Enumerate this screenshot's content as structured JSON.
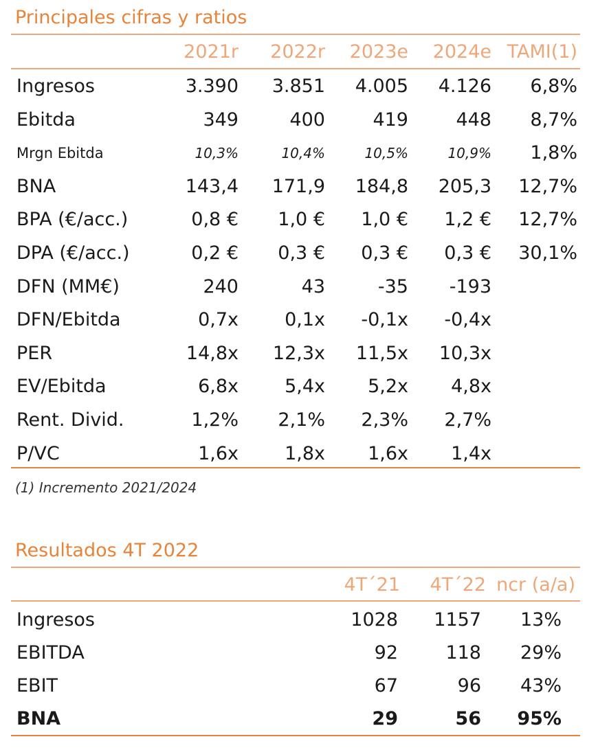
{
  "table1": {
    "title": "Principales cifras y ratios",
    "headers": [
      "2021r",
      "2022r",
      "2023e",
      "2024e",
      "TAMI(1)"
    ],
    "rows": [
      {
        "label": "Ingresos",
        "values": [
          "3.390",
          "3.851",
          "4.005",
          "4.126",
          "6,8%"
        ]
      },
      {
        "label": "Ebitda",
        "values": [
          "349",
          "400",
          "419",
          "448",
          "8,7%"
        ]
      },
      {
        "label": "Mrgn Ebitda",
        "values": [
          "10,3%",
          "10,4%",
          "10,5%",
          "10,9%",
          "1,8%"
        ]
      },
      {
        "label": "BNA",
        "values": [
          "143,4",
          "171,9",
          "184,8",
          "205,3",
          "12,7%"
        ]
      },
      {
        "label": "BPA (€/acc.)",
        "values": [
          "0,8 €",
          "1,0 €",
          "1,0 €",
          "1,2 €",
          "12,7%"
        ]
      },
      {
        "label": "DPA (€/acc.)",
        "values": [
          "0,2 €",
          "0,3 €",
          "0,3 €",
          "0,3 €",
          "30,1%"
        ]
      },
      {
        "label": "DFN (MM€)",
        "values": [
          "240",
          "43",
          "-35",
          "-193",
          ""
        ]
      },
      {
        "label": "DFN/Ebitda",
        "values": [
          "0,7x",
          "0,1x",
          "-0,1x",
          "-0,4x",
          ""
        ]
      },
      {
        "label": "PER",
        "values": [
          "14,8x",
          "12,3x",
          "11,5x",
          "10,3x",
          ""
        ]
      },
      {
        "label": "EV/Ebitda",
        "values": [
          "6,8x",
          "5,4x",
          "5,2x",
          "4,8x",
          ""
        ]
      },
      {
        "label": "Rent. Divid.",
        "values": [
          "1,2%",
          "2,1%",
          "2,3%",
          "2,7%",
          ""
        ]
      },
      {
        "label": "P/VC",
        "values": [
          "1,6x",
          "1,8x",
          "1,6x",
          "1,4x",
          ""
        ]
      }
    ],
    "footnote": "(1) Incremento 2021/2024"
  },
  "table2": {
    "title": "Resultados 4T 2022",
    "headers": [
      "4T´21",
      "4T´22",
      "ncr (a/a)"
    ],
    "rows": [
      {
        "label": "Ingresos",
        "values": [
          "1028",
          "1157",
          "13%"
        ]
      },
      {
        "label": "EBITDA",
        "values": [
          "92",
          "118",
          "29%"
        ]
      },
      {
        "label": "EBIT",
        "values": [
          "67",
          "96",
          "43%"
        ]
      },
      {
        "label": "BNA",
        "values": [
          "29",
          "56",
          "95%"
        ]
      }
    ]
  },
  "colors": {
    "accent": "#e8833a",
    "accent_light": "#eea779",
    "text": "#1a1a1a"
  }
}
